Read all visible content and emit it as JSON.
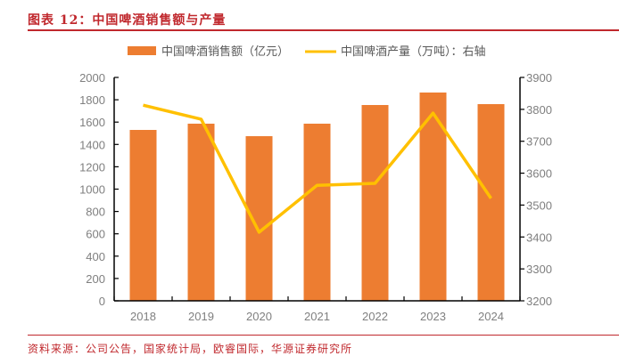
{
  "header": {
    "title": "图表 12：中国啤酒销售额与产量"
  },
  "footer": {
    "source": "资料来源：公司公告，国家统计局，欧睿国际，华源证券研究所"
  },
  "colors": {
    "bar": "#ed7d31",
    "line": "#ffc000",
    "accent": "#c0282d",
    "axis": "#000000",
    "tick_text": "#7f7f7f"
  },
  "chart_data": {
    "type": "bar",
    "title": "中国啤酒销售额与产量",
    "categories": [
      "2018",
      "2019",
      "2020",
      "2021",
      "2022",
      "2023",
      "2024"
    ],
    "series": [
      {
        "name": "中国啤酒销售额（亿元）",
        "type": "bar",
        "axis": "left",
        "values": [
          1530,
          1586,
          1474,
          1586,
          1753,
          1865,
          1761
        ]
      },
      {
        "name": "中国啤酒产量（万吨）：右轴",
        "type": "line",
        "axis": "right",
        "values": [
          3813,
          3769,
          3415,
          3562,
          3568,
          3788,
          3521
        ]
      }
    ],
    "left_axis": {
      "ylim": [
        0,
        2000
      ],
      "ticks": [
        "0",
        "200",
        "400",
        "600",
        "800",
        "1000",
        "1200",
        "1400",
        "1600",
        "1800",
        "2000"
      ]
    },
    "right_axis": {
      "ylim": [
        3200,
        3900
      ],
      "ticks": [
        "3200",
        "3300",
        "3400",
        "3500",
        "3600",
        "3700",
        "3800",
        "3900"
      ]
    },
    "xlabel": "",
    "ylabel": "",
    "legend_position": "top",
    "grid": false
  }
}
